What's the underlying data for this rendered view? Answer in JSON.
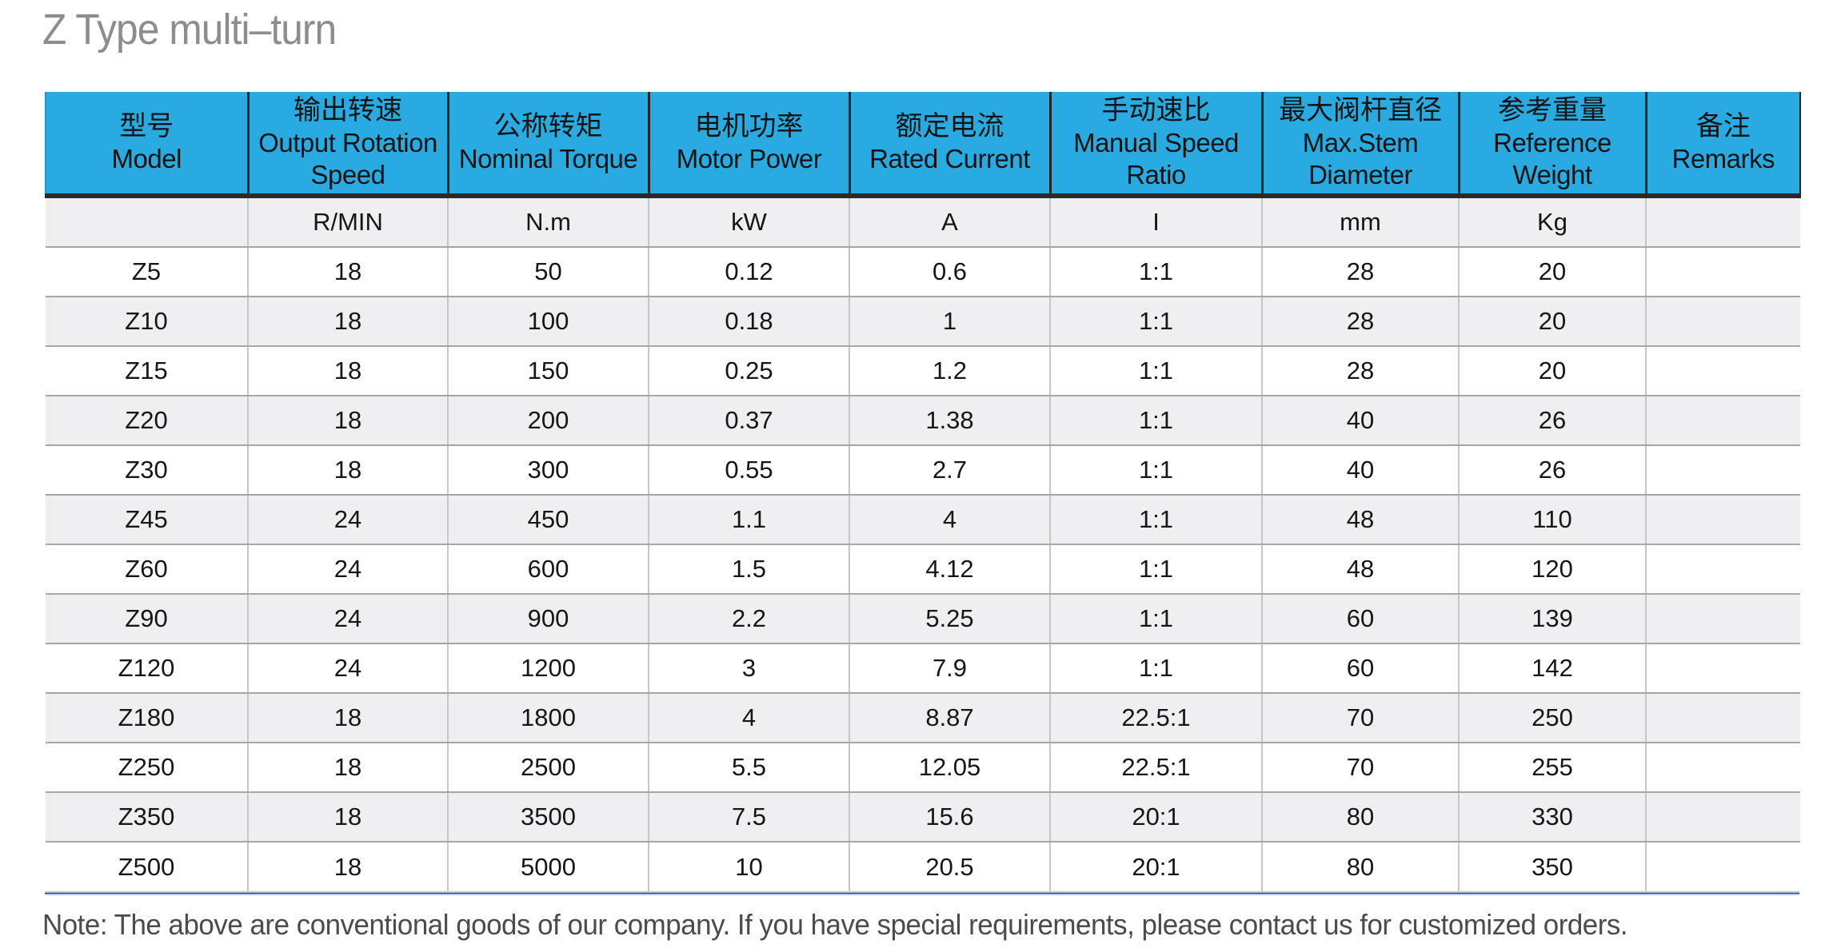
{
  "page": {
    "title": "Z Type multi–turn",
    "note": "Note: The above are conventional goods of our company. If you have special requirements, please contact us for customized orders."
  },
  "colors": {
    "header_bg": "#29abe2",
    "header_rule": "#2a2a2a",
    "stripe_bg": "#efeff1",
    "grid_v": "#c6c6c8",
    "grid_h": "#a6a6a8",
    "title_color": "#8d8d8d",
    "text_dark": "#1f1f1f",
    "note_color": "#4b4b4b",
    "bar_dark": "#30303c",
    "bar_light": "#b4c8e6"
  },
  "table": {
    "columns": [
      {
        "zh": "型号",
        "en": "Model"
      },
      {
        "zh": "输出转速",
        "en": "Output Rotation Speed"
      },
      {
        "zh": "公称转矩",
        "en": "Nominal Torque"
      },
      {
        "zh": "电机功率",
        "en": "Motor Power"
      },
      {
        "zh": "额定电流",
        "en": "Rated Current"
      },
      {
        "zh": "手动速比",
        "en": "Manual Speed Ratio"
      },
      {
        "zh": "最大阀杆直径",
        "en": "Max.Stem Diameter"
      },
      {
        "zh": "参考重量",
        "en": "Reference Weight"
      },
      {
        "zh": "备注",
        "en": "Remarks"
      }
    ],
    "units": [
      "",
      "R/MIN",
      "N.m",
      "kW",
      "A",
      "I",
      "mm",
      "Kg",
      ""
    ],
    "rows": [
      [
        "Z5",
        "18",
        "50",
        "0.12",
        "0.6",
        "1:1",
        "28",
        "20",
        ""
      ],
      [
        "Z10",
        "18",
        "100",
        "0.18",
        "1",
        "1:1",
        "28",
        "20",
        ""
      ],
      [
        "Z15",
        "18",
        "150",
        "0.25",
        "1.2",
        "1:1",
        "28",
        "20",
        ""
      ],
      [
        "Z20",
        "18",
        "200",
        "0.37",
        "1.38",
        "1:1",
        "40",
        "26",
        ""
      ],
      [
        "Z30",
        "18",
        "300",
        "0.55",
        "2.7",
        "1:1",
        "40",
        "26",
        ""
      ],
      [
        "Z45",
        "24",
        "450",
        "1.1",
        "4",
        "1:1",
        "48",
        "110",
        ""
      ],
      [
        "Z60",
        "24",
        "600",
        "1.5",
        "4.12",
        "1:1",
        "48",
        "120",
        ""
      ],
      [
        "Z90",
        "24",
        "900",
        "2.2",
        "5.25",
        "1:1",
        "60",
        "139",
        ""
      ],
      [
        "Z120",
        "24",
        "1200",
        "3",
        "7.9",
        "1:1",
        "60",
        "142",
        ""
      ],
      [
        "Z180",
        "18",
        "1800",
        "4",
        "8.87",
        "22.5:1",
        "70",
        "250",
        ""
      ],
      [
        "Z250",
        "18",
        "2500",
        "5.5",
        "12.05",
        "22.5:1",
        "70",
        "255",
        ""
      ],
      [
        "Z350",
        "18",
        "3500",
        "7.5",
        "15.6",
        "20:1",
        "80",
        "330",
        ""
      ],
      [
        "Z500",
        "18",
        "5000",
        "10",
        "20.5",
        "20:1",
        "80",
        "350",
        ""
      ]
    ]
  }
}
